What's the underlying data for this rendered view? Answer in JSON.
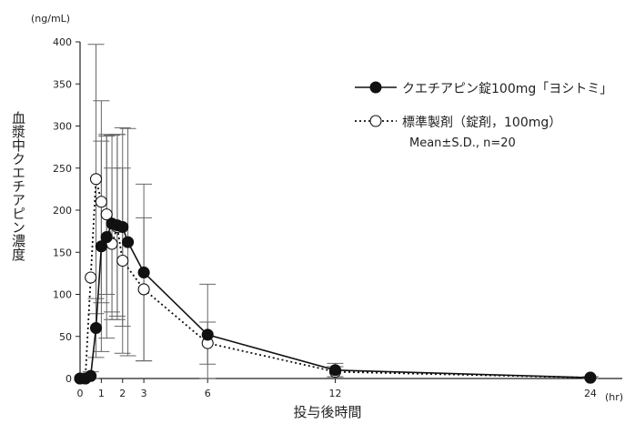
{
  "chart_data": {
    "type": "line",
    "ylabel": "血漿中クエチアピン濃度",
    "yunit": "(ng/mL)",
    "xlabel": "投与後時間",
    "xunit": "(hr)",
    "ylim": [
      0,
      400
    ],
    "yticks": [
      0,
      50,
      100,
      150,
      200,
      250,
      300,
      350,
      400
    ],
    "xticks": [
      0,
      1,
      2,
      3,
      6,
      12,
      24
    ],
    "xtick_labels": [
      "0",
      "1",
      "2",
      "3",
      "6",
      "12",
      "24"
    ],
    "legend_placement": "top-right",
    "note": "Mean±S.D., n=20",
    "series": [
      {
        "name": "クエチアピン錠100mg「ヨシトミ」",
        "marker": "filled-circle",
        "line": "solid",
        "color": "#111111",
        "x": [
          0,
          0.25,
          0.5,
          0.75,
          1,
          1.25,
          1.5,
          1.75,
          2,
          2.25,
          3,
          6,
          12,
          24
        ],
        "y": [
          0,
          0,
          3,
          60,
          157,
          168,
          184,
          182,
          180,
          162,
          126,
          52,
          10,
          1
        ],
        "sd": [
          0,
          0,
          5,
          35,
          125,
          120,
          105,
          108,
          118,
          135,
          105,
          60,
          8,
          1
        ]
      },
      {
        "name": "標準製剤（錠剤，100mg）",
        "marker": "open-circle",
        "line": "dotted",
        "color": "#111111",
        "x": [
          0,
          0.25,
          0.5,
          0.75,
          1,
          1.25,
          1.5,
          1.75,
          2,
          3,
          6,
          12,
          24
        ],
        "y": [
          0,
          0,
          120,
          237,
          210,
          195,
          160,
          180,
          140,
          106,
          42,
          8,
          1
        ],
        "sd": [
          0,
          0,
          0,
          160,
          120,
          95,
          90,
          110,
          110,
          85,
          25,
          6,
          1
        ]
      }
    ]
  }
}
